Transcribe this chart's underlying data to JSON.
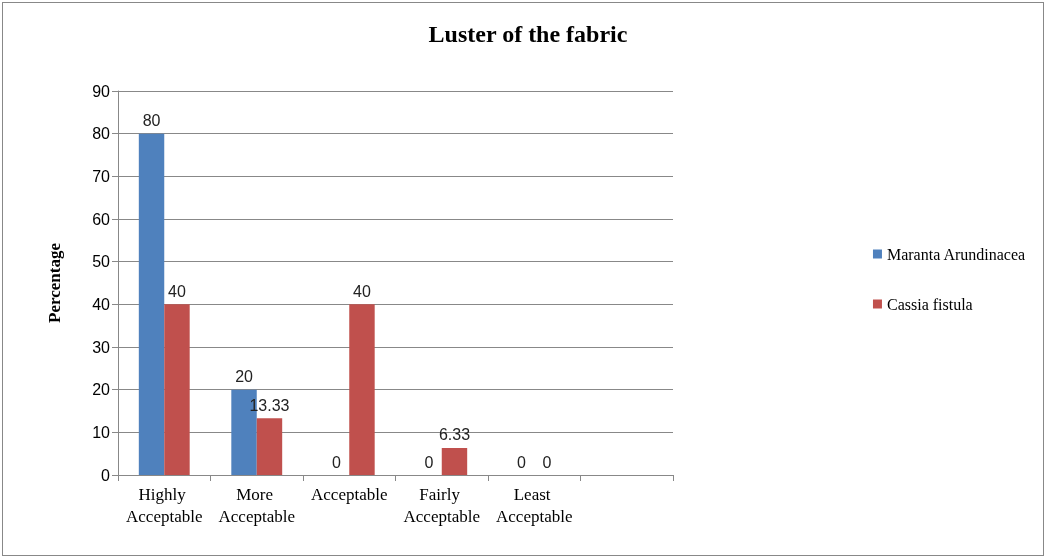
{
  "chart_data": {
    "type": "bar",
    "title": "Luster of the fabric",
    "ylabel": "Percentage",
    "categories": [
      "Highly Acceptable",
      "More Acceptable",
      "Acceptable",
      "Fairly Acceptable",
      "Least Acceptable",
      null
    ],
    "series": [
      {
        "name": "Maranta Arundinacea",
        "color": "#4f81bd",
        "values": [
          80,
          20,
          0,
          0,
          0,
          null
        ]
      },
      {
        "name": "Cassia fistula",
        "color": "#c0504d",
        "values": [
          40,
          13.33,
          40,
          6.33,
          0,
          null
        ]
      }
    ],
    "ylim": [
      0,
      90
    ],
    "yticks": [
      0,
      10,
      20,
      30,
      40,
      50,
      60,
      70,
      80,
      90
    ],
    "grid": "y",
    "legend": "right",
    "data_labels": true
  }
}
